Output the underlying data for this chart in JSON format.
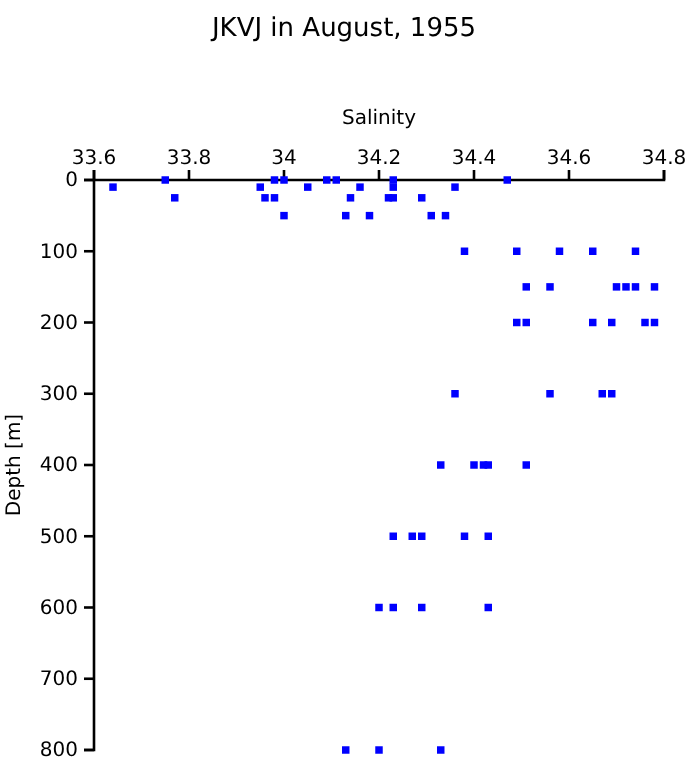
{
  "chart_data": {
    "type": "scatter",
    "title": "JKVJ in August, 1955",
    "xlabel": "Salinity",
    "ylabel": "Depth [m]",
    "xlim": [
      33.6,
      34.8
    ],
    "xticks": [
      33.6,
      33.8,
      34,
      34.2,
      34.4,
      34.6,
      34.8
    ],
    "ylim": [
      800,
      0
    ],
    "yticks": [
      0,
      100,
      200,
      300,
      400,
      500,
      600,
      700,
      800
    ],
    "marker": "square",
    "series": [
      {
        "color": "#0000ff",
        "x": [
          33.75,
          33.98,
          34.0,
          34.09,
          34.11,
          34.23,
          34.47,
          33.64,
          33.95,
          34.05,
          34.16,
          34.23,
          34.36,
          33.77,
          33.96,
          33.98,
          34.14,
          34.22,
          34.23,
          34.29,
          34.0,
          34.13,
          34.18,
          34.31,
          34.34,
          34.38,
          34.49,
          34.58,
          34.65,
          34.74,
          34.51,
          34.56,
          34.7,
          34.72,
          34.74,
          34.78,
          34.49,
          34.51,
          34.65,
          34.69,
          34.76,
          34.78,
          34.36,
          34.56,
          34.67,
          34.69,
          34.33,
          34.4,
          34.42,
          34.43,
          34.51,
          34.23,
          34.27,
          34.29,
          34.38,
          34.43,
          34.2,
          34.23,
          34.29,
          34.43,
          34.13,
          34.2,
          34.33
        ],
        "values": [
          0,
          0,
          0,
          0,
          0,
          0,
          0,
          10,
          10,
          10,
          10,
          10,
          10,
          25,
          25,
          25,
          25,
          25,
          25,
          25,
          50,
          50,
          50,
          50,
          50,
          100,
          100,
          100,
          100,
          100,
          150,
          150,
          150,
          150,
          150,
          150,
          200,
          200,
          200,
          200,
          200,
          200,
          300,
          300,
          300,
          300,
          400,
          400,
          400,
          400,
          400,
          500,
          500,
          500,
          500,
          500,
          600,
          600,
          600,
          600,
          800,
          800,
          800
        ]
      }
    ]
  }
}
